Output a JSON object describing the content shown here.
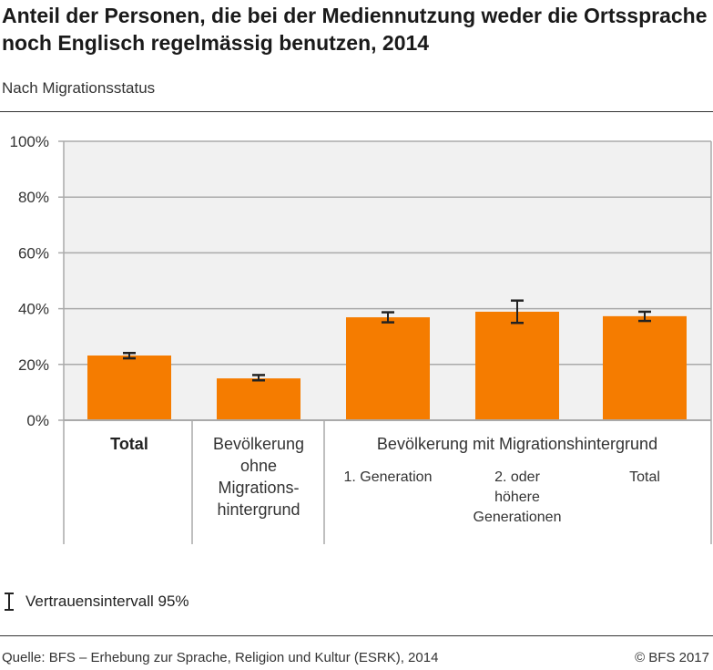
{
  "title": "Anteil der Personen, die bei der Mediennutzung weder die Ortssprache noch Englisch regelmässig benutzen, 2014",
  "subtitle": "Nach Migrationsstatus",
  "chart_data": {
    "type": "bar",
    "title": "Anteil der Personen, die bei der Mediennutzung weder die Ortssprache noch Englisch regelmässig benutzen, 2014",
    "subtitle": "Nach Migrationsstatus",
    "ylim": [
      0,
      100
    ],
    "yticks": [
      "0%",
      "20%",
      "40%",
      "60%",
      "80%",
      "100%"
    ],
    "grid": true,
    "bar_color": "#f57c00",
    "categories": [
      "Total",
      "Bevölkerung ohne Migrationshintergrund",
      "1. Generation",
      "2. oder höhere Generationen",
      "Total"
    ],
    "group_label": "Bevölkerung mit Migrationshintergrund",
    "values": [
      23.2,
      15.0,
      36.9,
      38.9,
      37.3
    ],
    "ci_low": [
      22.2,
      14.3,
      35.1,
      34.9,
      35.6
    ],
    "ci_high": [
      24.1,
      16.2,
      38.7,
      42.9,
      38.9
    ]
  },
  "legend": {
    "label": "Vertrauensintervall 95%",
    "icon": "error-bar-icon"
  },
  "footer": {
    "source": "Quelle: BFS – Erhebung zur Sprache, Religion und Kultur (ESRK), 2014",
    "copyright": "© BFS 2017"
  }
}
